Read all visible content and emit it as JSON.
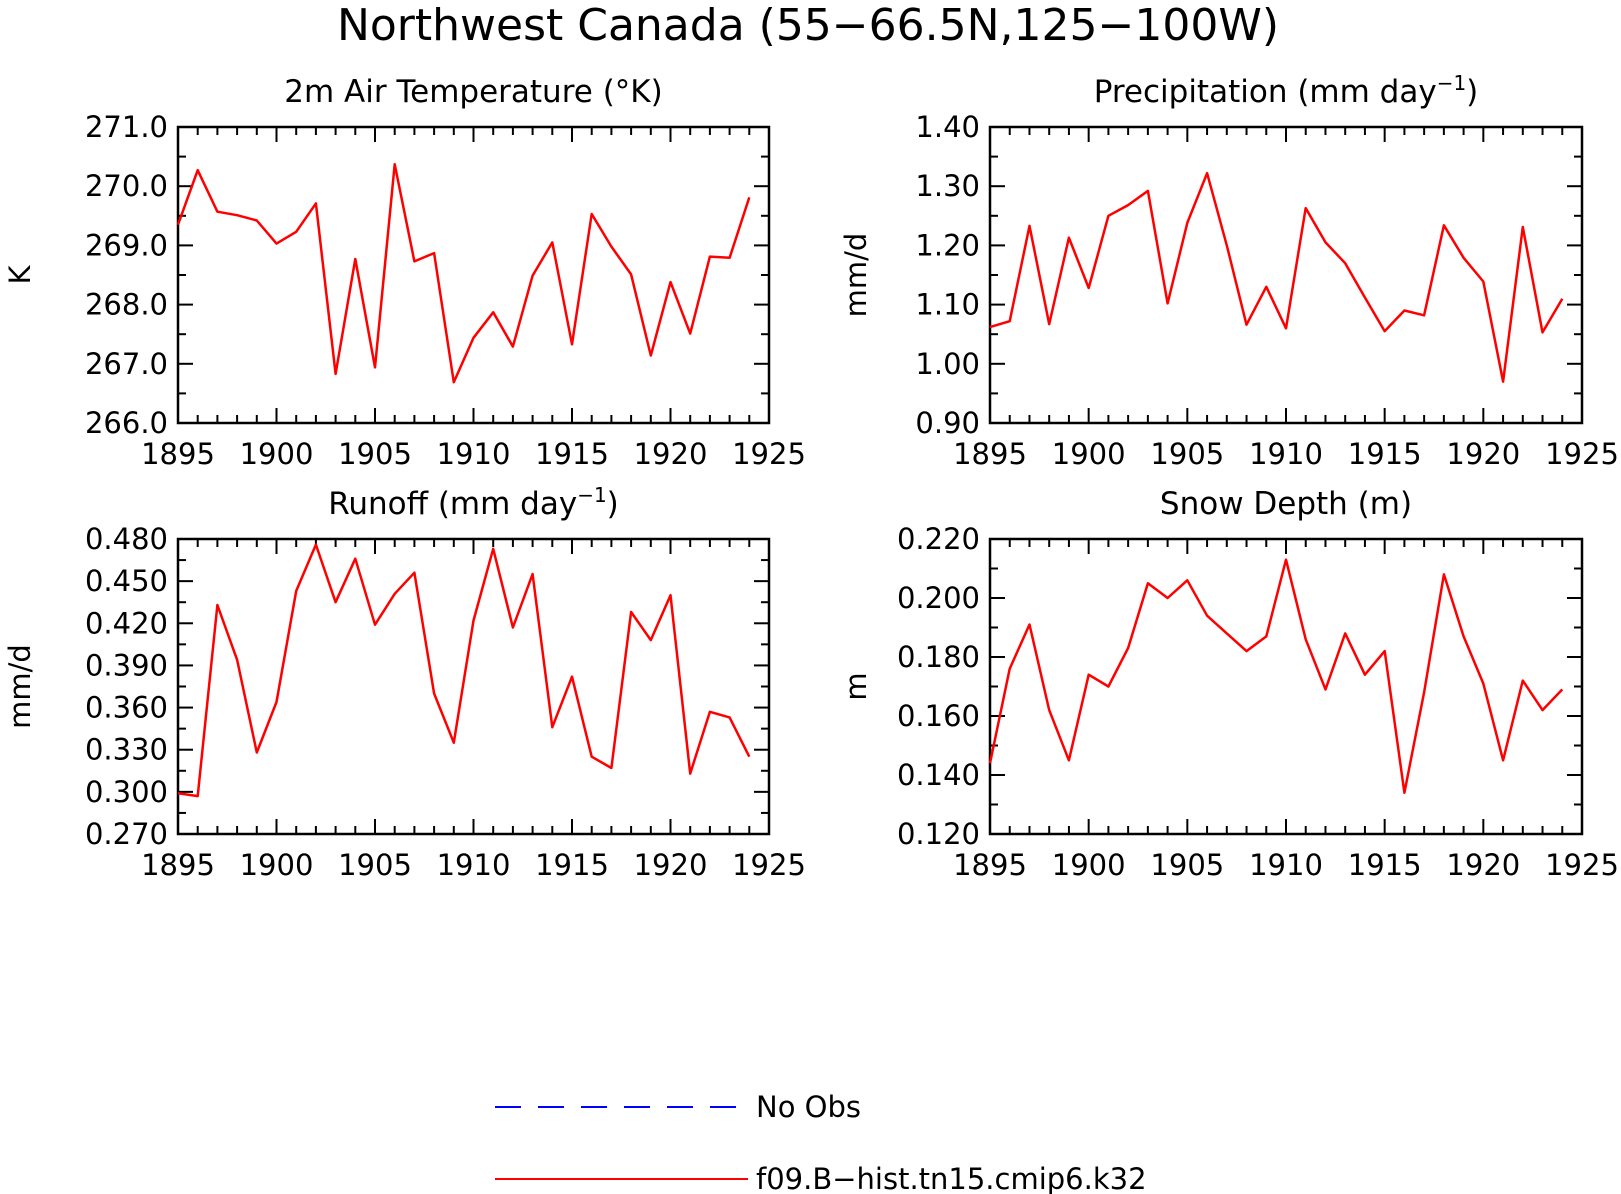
{
  "figure": {
    "title": "Northwest Canada (55−66.5N,125−100W)"
  },
  "colors": {
    "model_line": "#ff0000",
    "obs_line": "#0000ff",
    "axes": "#000000"
  },
  "legend": {
    "placement": "bottom-center",
    "obs_label": "No Obs",
    "model_label": "f09.B−hist.tn15.cmip6.k32"
  },
  "chart_data": [
    {
      "type": "line",
      "title": "2m Air Temperature (°K)",
      "xlabel": "",
      "ylabel": "K",
      "xlim": [
        1895,
        1925
      ],
      "ylim": [
        266.0,
        271.0
      ],
      "xticks": [
        1895,
        1900,
        1905,
        1910,
        1915,
        1920,
        1925
      ],
      "xtick_labels": [
        "1895",
        "1900",
        "1905",
        "1910",
        "1915",
        "1920",
        "1925"
      ],
      "yticks": [
        266.0,
        267.0,
        268.0,
        269.0,
        270.0,
        271.0
      ],
      "ytick_labels": [
        "266.0",
        "267.0",
        "268.0",
        "269.0",
        "270.0",
        "271.0"
      ],
      "grid": false,
      "x": [
        1895,
        1896,
        1897,
        1898,
        1899,
        1900,
        1901,
        1902,
        1903,
        1904,
        1905,
        1906,
        1907,
        1908,
        1909,
        1910,
        1911,
        1912,
        1913,
        1914,
        1915,
        1916,
        1917,
        1918,
        1919,
        1920,
        1921,
        1922,
        1923,
        1924
      ],
      "series": [
        {
          "name": "f09.B−hist.tn15.cmip6.k32",
          "values": [
            269.35,
            270.27,
            269.57,
            269.51,
            269.42,
            269.03,
            269.23,
            269.71,
            266.83,
            268.77,
            266.94,
            270.37,
            268.73,
            268.87,
            266.69,
            267.44,
            267.87,
            267.29,
            268.49,
            269.05,
            267.33,
            269.53,
            268.98,
            268.51,
            267.14,
            268.38,
            267.51,
            268.81,
            268.79,
            269.81
          ]
        }
      ]
    },
    {
      "type": "line",
      "title": "Precipitation (mm day",
      "title_superscript": "−1",
      "title_suffix": ")",
      "xlabel": "",
      "ylabel": "mm/d",
      "xlim": [
        1895,
        1925
      ],
      "ylim": [
        0.9,
        1.4
      ],
      "xticks": [
        1895,
        1900,
        1905,
        1910,
        1915,
        1920,
        1925
      ],
      "xtick_labels": [
        "1895",
        "1900",
        "1905",
        "1910",
        "1915",
        "1920",
        "1925"
      ],
      "yticks": [
        0.9,
        1.0,
        1.1,
        1.2,
        1.3,
        1.4
      ],
      "ytick_labels": [
        "0.90",
        "1.00",
        "1.10",
        "1.20",
        "1.30",
        "1.40"
      ],
      "grid": false,
      "x": [
        1895,
        1896,
        1897,
        1898,
        1899,
        1900,
        1901,
        1902,
        1903,
        1904,
        1905,
        1906,
        1907,
        1908,
        1909,
        1910,
        1911,
        1912,
        1913,
        1914,
        1915,
        1916,
        1917,
        1918,
        1919,
        1920,
        1921,
        1922,
        1923,
        1924
      ],
      "series": [
        {
          "name": "f09.B−hist.tn15.cmip6.k32",
          "values": [
            1.062,
            1.072,
            1.233,
            1.067,
            1.213,
            1.128,
            1.25,
            1.268,
            1.292,
            1.102,
            1.238,
            1.322,
            1.2,
            1.066,
            1.13,
            1.06,
            1.263,
            1.205,
            1.17,
            1.112,
            1.055,
            1.09,
            1.082,
            1.234,
            1.179,
            1.139,
            0.97,
            1.231,
            1.053,
            1.11
          ]
        }
      ]
    },
    {
      "type": "line",
      "title": "Runoff (mm day",
      "title_superscript": "−1",
      "title_suffix": ")",
      "xlabel": "",
      "ylabel": "mm/d",
      "xlim": [
        1895,
        1925
      ],
      "ylim": [
        0.27,
        0.48
      ],
      "xticks": [
        1895,
        1900,
        1905,
        1910,
        1915,
        1920,
        1925
      ],
      "xtick_labels": [
        "1895",
        "1900",
        "1905",
        "1910",
        "1915",
        "1920",
        "1925"
      ],
      "yticks": [
        0.27,
        0.3,
        0.33,
        0.36,
        0.39,
        0.42,
        0.45,
        0.48
      ],
      "ytick_labels": [
        "0.270",
        "0.300",
        "0.330",
        "0.360",
        "0.390",
        "0.420",
        "0.450",
        "0.480"
      ],
      "grid": false,
      "x": [
        1895,
        1896,
        1897,
        1898,
        1899,
        1900,
        1901,
        1902,
        1903,
        1904,
        1905,
        1906,
        1907,
        1908,
        1909,
        1910,
        1911,
        1912,
        1913,
        1914,
        1915,
        1916,
        1917,
        1918,
        1919,
        1920,
        1921,
        1922,
        1923,
        1924
      ],
      "series": [
        {
          "name": "f09.B−hist.tn15.cmip6.k32",
          "values": [
            0.299,
            0.297,
            0.433,
            0.394,
            0.328,
            0.364,
            0.443,
            0.476,
            0.435,
            0.466,
            0.419,
            0.441,
            0.456,
            0.37,
            0.335,
            0.422,
            0.473,
            0.417,
            0.455,
            0.346,
            0.382,
            0.325,
            0.317,
            0.428,
            0.408,
            0.44,
            0.313,
            0.357,
            0.353,
            0.325
          ]
        }
      ]
    },
    {
      "type": "line",
      "title": "Snow Depth (m)",
      "xlabel": "",
      "ylabel": "m",
      "xlim": [
        1895,
        1925
      ],
      "ylim": [
        0.12,
        0.22
      ],
      "xticks": [
        1895,
        1900,
        1905,
        1910,
        1915,
        1920,
        1925
      ],
      "xtick_labels": [
        "1895",
        "1900",
        "1905",
        "1910",
        "1915",
        "1920",
        "1925"
      ],
      "yticks": [
        0.12,
        0.14,
        0.16,
        0.18,
        0.2,
        0.22
      ],
      "ytick_labels": [
        "0.120",
        "0.140",
        "0.160",
        "0.180",
        "0.200",
        "0.220"
      ],
      "grid": false,
      "x": [
        1895,
        1896,
        1897,
        1898,
        1899,
        1900,
        1901,
        1902,
        1903,
        1904,
        1905,
        1906,
        1907,
        1908,
        1909,
        1910,
        1911,
        1912,
        1913,
        1914,
        1915,
        1916,
        1917,
        1918,
        1919,
        1920,
        1921,
        1922,
        1923,
        1924
      ],
      "series": [
        {
          "name": "f09.B−hist.tn15.cmip6.k32",
          "values": [
            0.144,
            0.176,
            0.191,
            0.162,
            0.145,
            0.174,
            0.17,
            0.183,
            0.205,
            0.2,
            0.206,
            0.194,
            0.188,
            0.182,
            0.187,
            0.213,
            0.186,
            0.169,
            0.188,
            0.174,
            0.182,
            0.134,
            0.168,
            0.208,
            0.187,
            0.171,
            0.145,
            0.172,
            0.162,
            0.169
          ]
        }
      ]
    }
  ]
}
